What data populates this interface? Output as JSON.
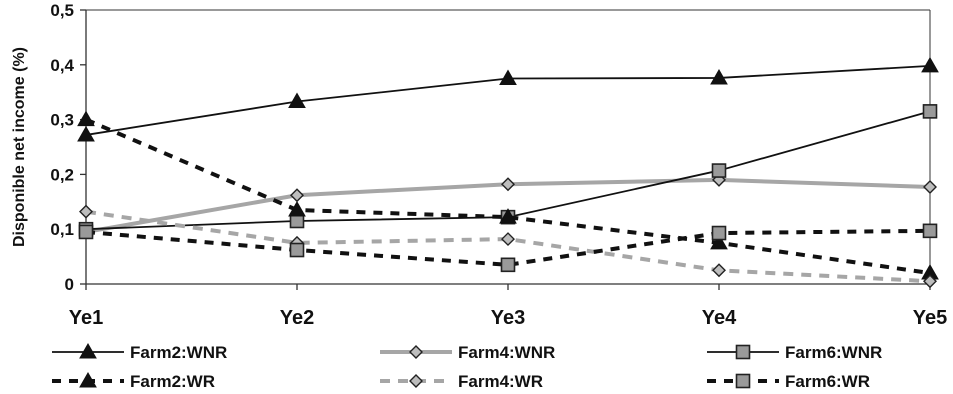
{
  "chart_data": {
    "type": "line",
    "title": "",
    "xlabel": "",
    "ylabel": "Disponible net income (%)",
    "categories": [
      "Ye1",
      "Ye2",
      "Ye3",
      "Ye4",
      "Ye5"
    ],
    "yticks": [
      "0",
      "0,1",
      "0,2",
      "0,3",
      "0,4",
      "0,5"
    ],
    "ylim": [
      0,
      0.5
    ],
    "grid": false,
    "legend_position": "bottom",
    "series": [
      {
        "name": "Farm2:WNR",
        "values": [
          0.272,
          0.333,
          0.375,
          0.376,
          0.398
        ],
        "color": "#111111",
        "dash": "solid",
        "marker": "triangle"
      },
      {
        "name": "Farm4:WNR",
        "values": [
          0.095,
          0.162,
          0.182,
          0.19,
          0.177
        ],
        "color": "#a6a6a6",
        "dash": "solid",
        "marker": "diamond"
      },
      {
        "name": "Farm6:WNR",
        "values": [
          0.1,
          0.115,
          0.122,
          0.207,
          0.315
        ],
        "color": "#111111",
        "dash": "solid",
        "marker": "square"
      },
      {
        "name": "Farm2:WR",
        "values": [
          0.3,
          0.135,
          0.122,
          0.075,
          0.02
        ],
        "color": "#111111",
        "dash": "dashed",
        "marker": "triangle"
      },
      {
        "name": "Farm4:WR",
        "values": [
          0.132,
          0.075,
          0.082,
          0.025,
          0.005
        ],
        "color": "#a6a6a6",
        "dash": "dashed",
        "marker": "diamond"
      },
      {
        "name": "Farm6:WR",
        "values": [
          0.095,
          0.062,
          0.035,
          0.093,
          0.097
        ],
        "color": "#111111",
        "dash": "dashed",
        "marker": "square"
      }
    ]
  }
}
